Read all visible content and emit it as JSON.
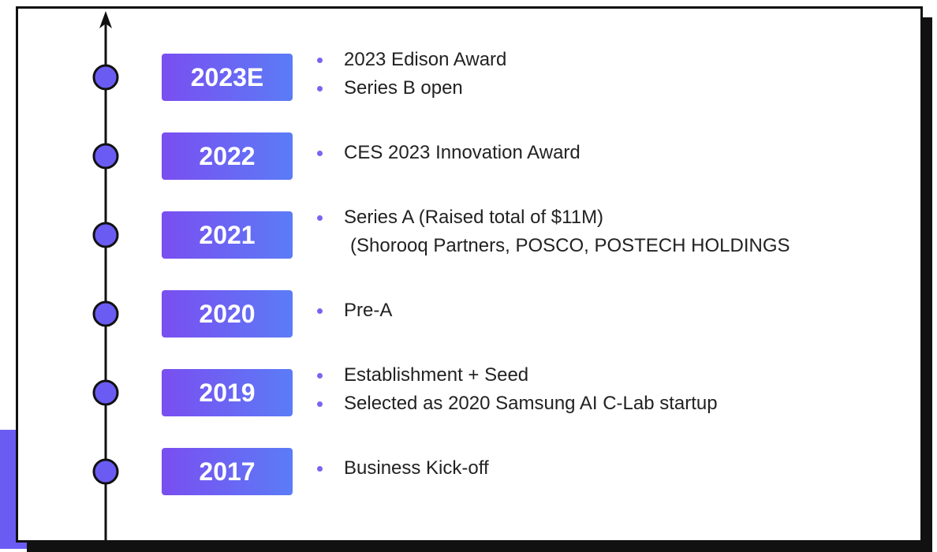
{
  "timeline": [
    {
      "year": "2023E",
      "bullets": [
        [
          "2023 Edison Award"
        ],
        [
          "Series B open"
        ]
      ]
    },
    {
      "year": "2022",
      "bullets": [
        [
          "CES 2023 Innovation Award"
        ]
      ]
    },
    {
      "year": "2021",
      "bullets": [
        [
          "Series A (Raised total of $11M)",
          "(Shorooq Partners, POSCO, POSTECH HOLDINGS"
        ]
      ]
    },
    {
      "year": "2020",
      "bullets": [
        [
          "Pre-A"
        ]
      ]
    },
    {
      "year": "2019",
      "bullets": [
        [
          "Establishment + Seed"
        ],
        [
          "Selected as 2020 Samsung AI C-Lab startup"
        ]
      ]
    },
    {
      "year": "2017",
      "bullets": [
        [
          "Business Kick-off"
        ]
      ]
    }
  ]
}
